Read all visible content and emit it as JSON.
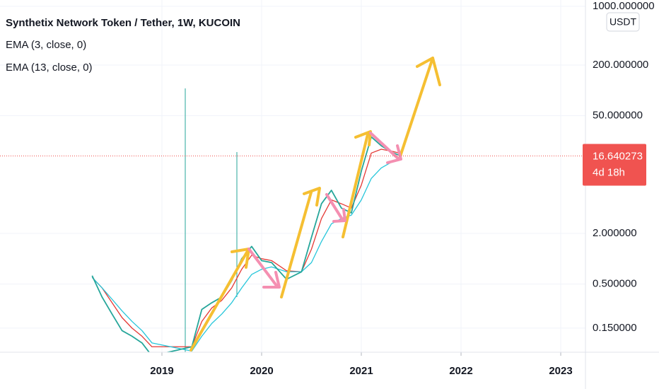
{
  "chart_data": {
    "type": "line",
    "title": "Synthetix Network Token / Tether, 1W, KUCOIN",
    "currency": "USDT",
    "log_scale": true,
    "grid": true,
    "color": "#26a69a",
    "x": [
      2018.3,
      2018.4,
      2018.5,
      2018.6,
      2018.7,
      2018.8,
      2018.9,
      2019.3,
      2019.4,
      2019.5,
      2019.6,
      2019.7,
      2019.8,
      2019.9,
      2020.0,
      2020.1,
      2020.25,
      2020.4,
      2020.5,
      2020.6,
      2020.7,
      2020.8,
      2020.9,
      2021.0,
      2021.1,
      2021.2,
      2021.3,
      2021.4
    ],
    "values": [
      0.63,
      0.35,
      0.22,
      0.14,
      0.12,
      0.1,
      0.07,
      0.09,
      0.25,
      0.3,
      0.35,
      0.55,
      1.0,
      1.4,
      0.95,
      0.9,
      0.57,
      0.7,
      1.8,
      4.5,
      6.5,
      4.0,
      3.5,
      11,
      28,
      22,
      18.5,
      16.64
    ],
    "series": [
      {
        "name": "EMA (3, close, 0)",
        "color": "#e53935",
        "values": [
          0.6,
          0.45,
          0.3,
          0.2,
          0.15,
          0.12,
          0.09,
          0.09,
          0.18,
          0.26,
          0.32,
          0.45,
          0.75,
          1.1,
          1.0,
          0.95,
          0.72,
          0.7,
          1.3,
          3.0,
          5.0,
          4.5,
          4.0,
          7.5,
          18,
          20,
          19,
          17.8
        ]
      },
      {
        "name": "EMA (13, close, 0)",
        "color": "#26c6da",
        "values": [
          0.6,
          0.45,
          0.33,
          0.24,
          0.18,
          0.14,
          0.1,
          0.08,
          0.12,
          0.17,
          0.22,
          0.3,
          0.45,
          0.65,
          0.75,
          0.8,
          0.7,
          0.7,
          0.9,
          1.6,
          2.6,
          3.0,
          3.3,
          5.0,
          9,
          12,
          14,
          15
        ]
      }
    ],
    "xlim": [
      2017.376,
      2023.248
    ],
    "xticks": [
      2019,
      2020,
      2021,
      2022,
      2023
    ],
    "ylim": [
      0.0775,
      1186
    ],
    "yticks": [
      {
        "value": 1000,
        "label": "1000.000000"
      },
      {
        "value": 200,
        "label": "200.000000"
      },
      {
        "value": 50,
        "label": "50.000000"
      },
      {
        "value": 2,
        "label": "2.000000"
      },
      {
        "value": 0.5,
        "label": "0.500000"
      },
      {
        "value": 0.15,
        "label": "0.150000"
      }
    ],
    "last_price": 16.640273,
    "last_price_color": "#f05350",
    "countdown": "4d 18h"
  }
}
